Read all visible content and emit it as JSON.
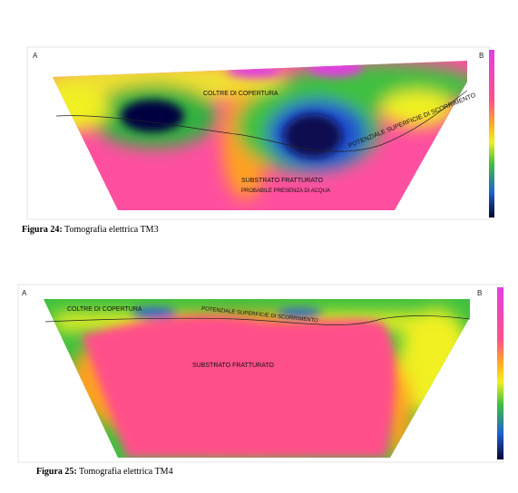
{
  "figures": [
    {
      "labels": {
        "left": "A",
        "right": "B"
      },
      "annotations": [
        "COLTRE DI COPERTURA",
        "POTENZIALE SUPERFICIE DI SCORRIMENTO",
        "SUBSTRATO FRATTURATO",
        "PROBABILE PRESENZA DI ACQUA"
      ],
      "caption": {
        "number": "Figura 24:",
        "text": "Tomografia elettrica TM3"
      }
    },
    {
      "labels": {
        "left": "A",
        "right": "B"
      },
      "annotations": [
        "COLTRE DI COPERTURA",
        "POTENZIALE SUPERFICIE DI SCORRIMENTO",
        "SUBSTRATO FRATTURATO"
      ],
      "caption": {
        "number": "Figura 25:",
        "text": "Tomografia elettrica TM4"
      }
    }
  ]
}
